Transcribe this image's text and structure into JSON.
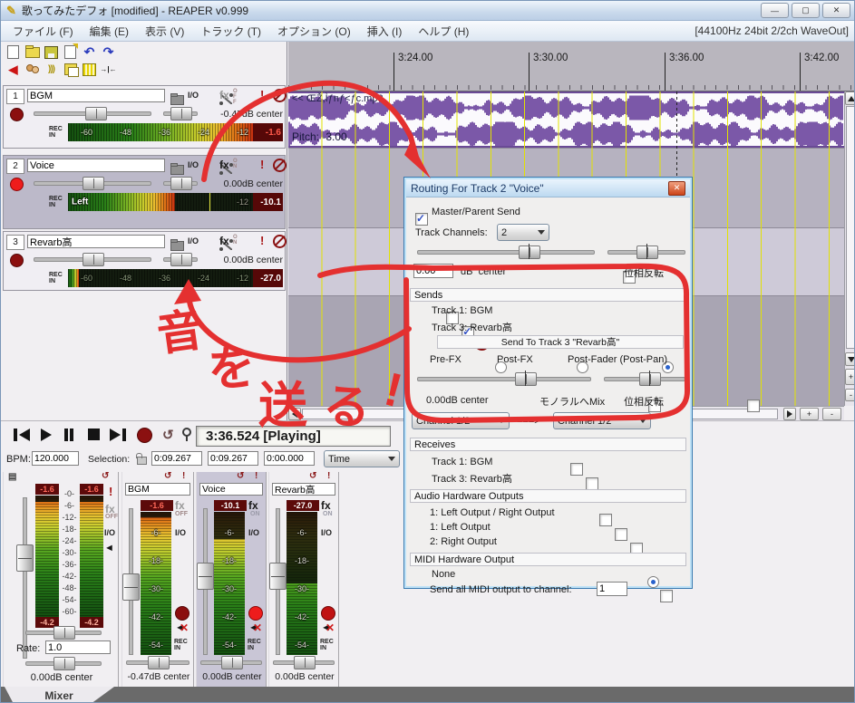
{
  "icons": {
    "app": "✎",
    "min": "—",
    "max": "▢",
    "close": "✕",
    "undo": "↶",
    "redo": "↷",
    "loop": "↺",
    "alert": "!",
    "wave": ")))",
    "split": "→|←",
    "list": "▤"
  },
  "window": {
    "title": "歌ってみたデフォ [modified] - REAPER v0.999"
  },
  "menu": {
    "items": [
      "ファイル (F)",
      "編集 (E)",
      "表示 (V)",
      "トラック (T)",
      "オプション (O)",
      "挿入 (I)",
      "ヘルプ (H)"
    ],
    "status": "[44100Hz 24bit 2/2ch WaveOut]"
  },
  "timeline": {
    "labels": [
      "3:24.00",
      "3:30.00",
      "3:36.00",
      "3:42.00"
    ]
  },
  "arrange": {
    "item_label": "<< ŒŽ,Ìƒnƒ<ƒc.mp3",
    "pitch_label": "Pitch: -3.00"
  },
  "tracks": [
    {
      "num": "1",
      "name": "BGM",
      "io": "I/O",
      "fx": "fx",
      "fx_badge": "OFF",
      "vol": "-0.47dB center",
      "rec": "REC\nIN",
      "labels": [
        "-60",
        "-48",
        "-36",
        "-24",
        "-12"
      ],
      "peak": "-1.6"
    },
    {
      "num": "2",
      "name": "Voice",
      "io": "I/O",
      "fx": "fx",
      "fx_badge": "ON",
      "vol": "0.00dB center",
      "rec": "REC\nIN",
      "left": "Left",
      "label12": "-12",
      "peak": "-10.1"
    },
    {
      "num": "3",
      "name": "Revarb高",
      "io": "I/O",
      "fx": "fx",
      "fx_badge": "ON",
      "vol": "0.00dB center",
      "rec": "REC\nIN",
      "labels": [
        "-60",
        "-48",
        "-36",
        "-24",
        "-12"
      ],
      "peak": "-27.0"
    }
  ],
  "dialog": {
    "title": "Routing For Track 2 \"Voice\"",
    "master_send": "Master/Parent Send",
    "track_channels_label": "Track Channels:",
    "track_channels": "2",
    "vol": "0.00",
    "db_center": "dB  center",
    "phase": "位相反転",
    "sends_header": "Sends",
    "send1": "Track 1: BGM",
    "send2": "Track 3: Revarb高",
    "send_to": "Send To Track 3 \"Revarb高\"",
    "pre_fx": "Pre-FX",
    "post_fx": "Post-FX",
    "post_fader": "Post-Fader (Post-Pan)",
    "send_vol": "0.00dB center",
    "mono": "モノラルへMix",
    "phase2": "位相反転",
    "ch_src": "Channel 1/2",
    "arrow": "===>",
    "ch_dst": "Channel 1/2",
    "receives_header": "Receives",
    "recv1": "Track 1: BGM",
    "recv2": "Track 3: Revarb高",
    "hw_header": "Audio Hardware Outputs",
    "hw1": "1: Left Output / Right Output",
    "hw2": "1: Left Output",
    "hw3": "2: Right Output",
    "midi_header": "MIDI Hardware Output",
    "midi_none": "None",
    "midi_send": "Send all MIDI output to channel:",
    "midi_ch": "1"
  },
  "transport": {
    "time": "3:36.524 [Playing]",
    "bpm_label": "BPM:",
    "bpm": "120.000",
    "selection_label": "Selection:",
    "sel_start": "0:09.267",
    "sel_end": "0:09.267",
    "sel_len": "0:00.000",
    "mode": "Time"
  },
  "mixer": {
    "master": {
      "peak_l": "-1.6",
      "peak_r": "-1.6",
      "min_l": "-4.2",
      "min_r": "-4.2",
      "scale": "-0-\n-6-\n-12-\n-18-\n-24-\n-30-\n-36-\n-42-\n-48-\n-54-\n-60-",
      "alert": "!",
      "fx": "fx",
      "fx_state": "OFF",
      "io": "I/O",
      "rate_label": "Rate:",
      "rate": "1.0",
      "pan": "0.00dB center"
    },
    "strips": [
      {
        "name": "BGM",
        "peak": "-1.6",
        "fx": "fx",
        "fx_state": "OFF",
        "io": "I/O",
        "scale": "-6-\n-18-\n-30-\n-42-\n-54-",
        "rec": "REC\nIN",
        "pan": "-0.47dB center"
      },
      {
        "name": "Voice",
        "peak": "-10.1",
        "fx": "fx",
        "fx_state": "ON",
        "io": "I/O",
        "scale": "-6-\n-18-\n-30-\n-42-\n-54-",
        "rec": "REC\nIN",
        "pan": "0.00dB center"
      },
      {
        "name": "Revarb高",
        "peak": "-27.0",
        "fx": "fx",
        "fx_state": "ON",
        "io": "I/O",
        "scale": "-6-\n-18-\n-30-\n-42-\n-54-",
        "rec": "REC\nIN",
        "pan": "0.00dB center"
      }
    ]
  },
  "footer": {
    "tab_label": "Mixer"
  },
  "annotation": {
    "chars": [
      "音",
      "を",
      "送",
      "る",
      "!"
    ]
  }
}
